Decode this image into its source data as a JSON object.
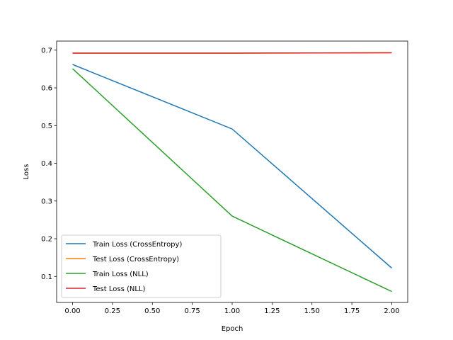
{
  "chart_data": {
    "type": "line",
    "title": "",
    "xlabel": "Epoch",
    "ylabel": "Loss",
    "xlim": [
      -0.1,
      2.1
    ],
    "ylim": [
      0.031,
      0.724
    ],
    "xticks": [
      0.0,
      0.25,
      0.5,
      0.75,
      1.0,
      1.25,
      1.5,
      1.75,
      2.0
    ],
    "xtick_labels": [
      "0.00",
      "0.25",
      "0.50",
      "0.75",
      "1.00",
      "1.25",
      "1.50",
      "1.75",
      "2.00"
    ],
    "yticks": [
      0.1,
      0.2,
      0.3,
      0.4,
      0.5,
      0.6,
      0.7
    ],
    "ytick_labels": [
      "0.1",
      "0.2",
      "0.3",
      "0.4",
      "0.5",
      "0.6",
      "0.7"
    ],
    "grid": false,
    "legend_position": "lower-left",
    "x": [
      0,
      1,
      2
    ],
    "series": [
      {
        "name": "Train Loss (CrossEntropy)",
        "color": "#1f77b4",
        "values": [
          0.662,
          0.491,
          0.122
        ]
      },
      {
        "name": "Test Loss (CrossEntropy)",
        "color": "#ff7f0e",
        "values": [
          0.692,
          0.692,
          0.693
        ]
      },
      {
        "name": "Train Loss (NLL)",
        "color": "#2ca02c",
        "values": [
          0.651,
          0.26,
          0.06
        ]
      },
      {
        "name": "Test Loss (NLL)",
        "color": "#d62728",
        "values": [
          0.692,
          0.692,
          0.693
        ]
      }
    ]
  }
}
